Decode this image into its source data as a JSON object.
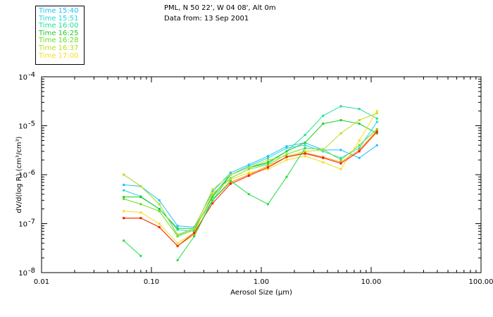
{
  "header": {
    "line1": "PML, N 50 22', W 04 08', Alt 0m",
    "line2": "Data from: 13 Sep 2001"
  },
  "chart_data": {
    "type": "line",
    "xlabel": "Aerosol Size (μm)",
    "ylabel": "dV/d(log R) (cm³/cm³)",
    "x_scale": "log",
    "y_scale": "log",
    "xlim": [
      0.01,
      100
    ],
    "ylim": [
      1e-08,
      0.0001
    ],
    "x_tick_labels": [
      "0.01",
      "0.10",
      "1.00",
      "10.00",
      "100.00"
    ],
    "x_tick_values": [
      0.01,
      0.1,
      1,
      10,
      100
    ],
    "y_tick_labels": [
      {
        "mantissa": "10",
        "exponent": "-8",
        "value": 1e-08
      },
      {
        "mantissa": "10",
        "exponent": "-7",
        "value": 1e-07
      },
      {
        "mantissa": "10",
        "exponent": "-6",
        "value": 1e-06
      },
      {
        "mantissa": "10",
        "exponent": "-5",
        "value": 1e-05
      },
      {
        "mantissa": "10",
        "exponent": "-4",
        "value": 0.0001
      }
    ],
    "grid": false,
    "legend_position": "top-left",
    "series": [
      {
        "name": "Time 15:40",
        "color": "#1fc0ff",
        "x": [
          0.056,
          0.08,
          0.118,
          0.173,
          0.245,
          0.36,
          0.525,
          0.77,
          1.15,
          1.7,
          2.5,
          3.65,
          5.3,
          7.8,
          11.3
        ],
        "y": [
          6.2e-07,
          5.8e-07,
          3e-07,
          9e-08,
          8.5e-08,
          4.5e-07,
          1.1e-06,
          1.6e-06,
          2.4e-06,
          3.8e-06,
          4.5e-06,
          3.2e-06,
          3.2e-06,
          2.2e-06,
          4e-06
        ]
      },
      {
        "name": "Time 15:51",
        "color": "#22d8d8",
        "x": [
          0.056,
          0.08,
          0.118,
          0.173,
          0.245,
          0.36,
          0.525,
          0.77,
          1.15,
          1.7,
          2.5,
          3.65,
          5.3,
          7.8,
          11.3
        ],
        "y": [
          4.8e-07,
          3.6e-07,
          2e-07,
          7.5e-08,
          7e-08,
          3.8e-07,
          1e-06,
          1.5e-06,
          2.2e-06,
          3.5e-06,
          4e-06,
          3e-06,
          2.2e-06,
          3.5e-06,
          1.2e-05
        ]
      },
      {
        "name": "Time 16:00",
        "color": "#22e090",
        "x": [
          0.056,
          0.08,
          0.118,
          0.173,
          0.245,
          0.36,
          0.525,
          0.77,
          1.15,
          1.7,
          2.5,
          3.65,
          5.3,
          7.8,
          11.3
        ],
        "y": [
          1e-06,
          5.8e-07,
          2.5e-07,
          5.8e-08,
          8e-08,
          3e-07,
          1e-06,
          1.4e-06,
          1.7e-06,
          3e-06,
          6.5e-06,
          1.6e-05,
          2.5e-05,
          2.2e-05,
          1.4e-05
        ]
      },
      {
        "name": "Time 16:25",
        "color": "#22cc22",
        "x": [
          0.056,
          0.08,
          0.118,
          0.173,
          0.245,
          0.36,
          0.525,
          0.77,
          1.15,
          1.7,
          2.5,
          3.65,
          5.3,
          7.8,
          11.3
        ],
        "y": [
          3.5e-07,
          3.5e-07,
          2e-07,
          8e-08,
          8e-08,
          3.5e-07,
          1e-06,
          1.4e-06,
          1.8e-06,
          3e-06,
          4.5e-06,
          1.1e-05,
          1.3e-05,
          1.1e-05,
          7e-06
        ]
      },
      {
        "name": "Time 16:28",
        "color": "#66dd22",
        "x": [
          0.056,
          0.08,
          0.118,
          0.173,
          0.245,
          0.36,
          0.525,
          0.77,
          1.15,
          1.7,
          2.5,
          3.65,
          5.3,
          7.8,
          11.3
        ],
        "y": [
          3.2e-07,
          2.5e-07,
          1.8e-07,
          5.5e-08,
          7.5e-08,
          3.8e-07,
          8.5e-07,
          1.3e-06,
          1.6e-06,
          2.6e-06,
          3.5e-06,
          3.3e-06,
          2e-06,
          4e-06,
          8.5e-06
        ]
      },
      {
        "name": "Time 16:37",
        "color": "#bbdd22",
        "x": [
          0.056,
          0.08,
          0.118,
          0.173,
          0.245,
          0.36,
          0.525,
          0.77,
          1.15,
          1.7,
          2.5,
          3.65,
          5.3,
          7.8,
          11.3
        ],
        "y": [
          1e-06,
          5.8e-07,
          2.5e-07,
          6e-08,
          8e-08,
          5e-07,
          1e-06,
          1.4e-06,
          2e-06,
          2.4e-06,
          3e-06,
          3.2e-06,
          7e-06,
          1.3e-05,
          1.8e-05
        ]
      },
      {
        "name": "Time 17:00",
        "color": "#f0e020",
        "x": [
          0.056,
          0.08,
          0.118,
          0.173,
          0.245,
          0.36,
          0.525,
          0.77,
          1.15,
          1.7,
          2.5,
          3.65,
          5.3,
          7.8,
          11.3
        ],
        "y": [
          1.8e-07,
          1.7e-07,
          1e-07,
          4e-08,
          6.5e-08,
          4.2e-07,
          8e-07,
          1.1e-06,
          1.3e-06,
          2e-06,
          2.4e-06,
          1.8e-06,
          1.3e-06,
          5e-06,
          2e-05
        ]
      },
      {
        "name": "",
        "color": "#ff8800",
        "x": [
          0.056,
          0.08,
          0.118,
          0.173,
          0.245,
          0.36,
          0.525,
          0.77,
          1.15,
          1.7,
          2.5,
          3.65,
          5.3,
          7.8,
          11.3
        ],
        "y": [
          1.3e-07,
          1.3e-07,
          8.5e-08,
          3.5e-08,
          6e-08,
          3e-07,
          7e-07,
          1e-06,
          1.5e-06,
          2.3e-06,
          2.8e-06,
          2.3e-06,
          1.8e-06,
          3.2e-06,
          8e-06
        ]
      },
      {
        "name": "",
        "color": "#ee2200",
        "x": [
          0.056,
          0.08,
          0.118,
          0.173,
          0.245,
          0.36,
          0.525,
          0.77,
          1.15,
          1.7,
          2.5,
          3.65,
          5.3,
          7.8,
          11.3
        ],
        "y": [
          1.3e-07,
          1.3e-07,
          8.5e-08,
          3.5e-08,
          6.5e-08,
          2.6e-07,
          6.5e-07,
          9.5e-07,
          1.4e-06,
          2.3e-06,
          2.7e-06,
          2.2e-06,
          1.7e-06,
          3e-06,
          7.5e-06
        ]
      },
      {
        "name": "",
        "color": "#22dd44",
        "x": [
          0.056,
          0.08,
          0.118,
          0.173,
          0.245,
          0.36,
          0.525,
          0.77,
          1.15,
          1.7,
          2.5,
          3.65,
          5.3,
          7.8,
          11.3
        ],
        "y": [
          4.5e-08,
          2.2e-08,
          null,
          1.8e-08,
          5.5e-08,
          3e-07,
          7.5e-07,
          4e-07,
          2.5e-07,
          9e-07,
          3.5e-06,
          null,
          null,
          null,
          null
        ]
      }
    ]
  }
}
